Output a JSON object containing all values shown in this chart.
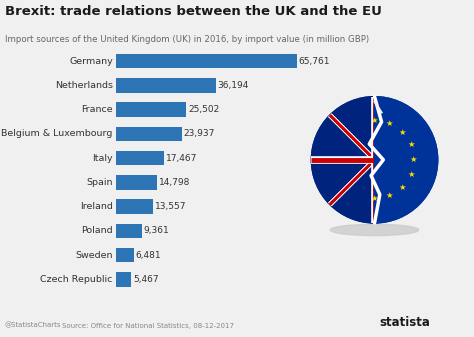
{
  "title": "Brexit: trade relations between the UK and the EU",
  "subtitle": "Import sources of the United Kingdom (UK) in 2016, by import value (in million GBP)",
  "categories": [
    "Germany",
    "Netherlands",
    "France",
    "Belgium & Luxembourg",
    "Italy",
    "Spain",
    "Ireland",
    "Poland",
    "Sweden",
    "Czech Republic"
  ],
  "values": [
    65761,
    36194,
    25502,
    23937,
    17467,
    14798,
    13557,
    9361,
    6481,
    5467
  ],
  "bar_color": "#2e75b6",
  "background_color": "#f0f0f0",
  "source_text": "Source: Office for National Statistics, 08-12-2017",
  "footer_handle": "@StatistaCharts",
  "statista_text": "statista",
  "title_fontsize": 9.5,
  "subtitle_fontsize": 6.2,
  "label_fontsize": 6.8,
  "value_fontsize": 6.5,
  "xlim": [
    0,
    75000
  ],
  "eu_blue": "#003399",
  "uk_red": "#cc0000",
  "uk_blue": "#00247d",
  "star_color": "#ffdd00",
  "shadow_color": "#c8c8c8"
}
